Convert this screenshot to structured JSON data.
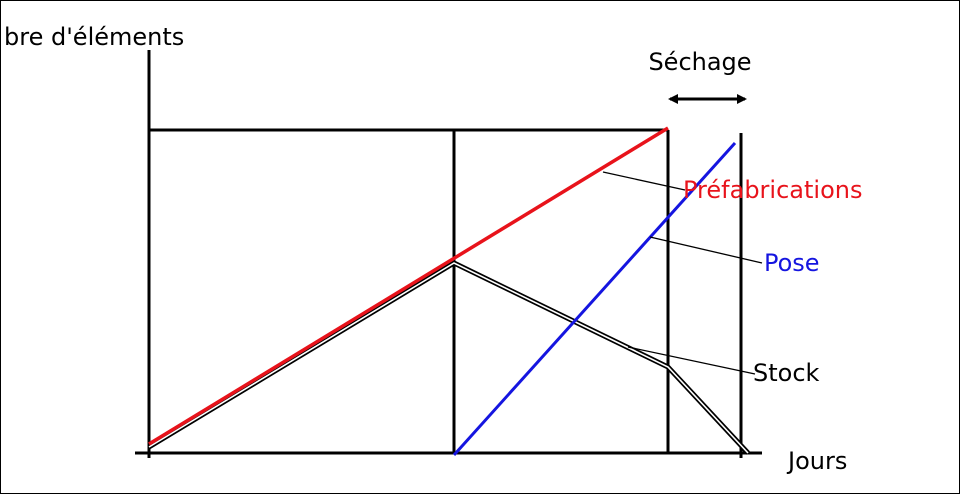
{
  "axes": {
    "y_label": "bre d'éléments",
    "x_label": "Jours"
  },
  "annotation": "Séchage",
  "curves": [
    {
      "label": "Préfabrications",
      "color": "#e8131b"
    },
    {
      "label": "Pose",
      "color": "#1515e0"
    },
    {
      "label": "Stock",
      "color": "#000000"
    }
  ]
}
